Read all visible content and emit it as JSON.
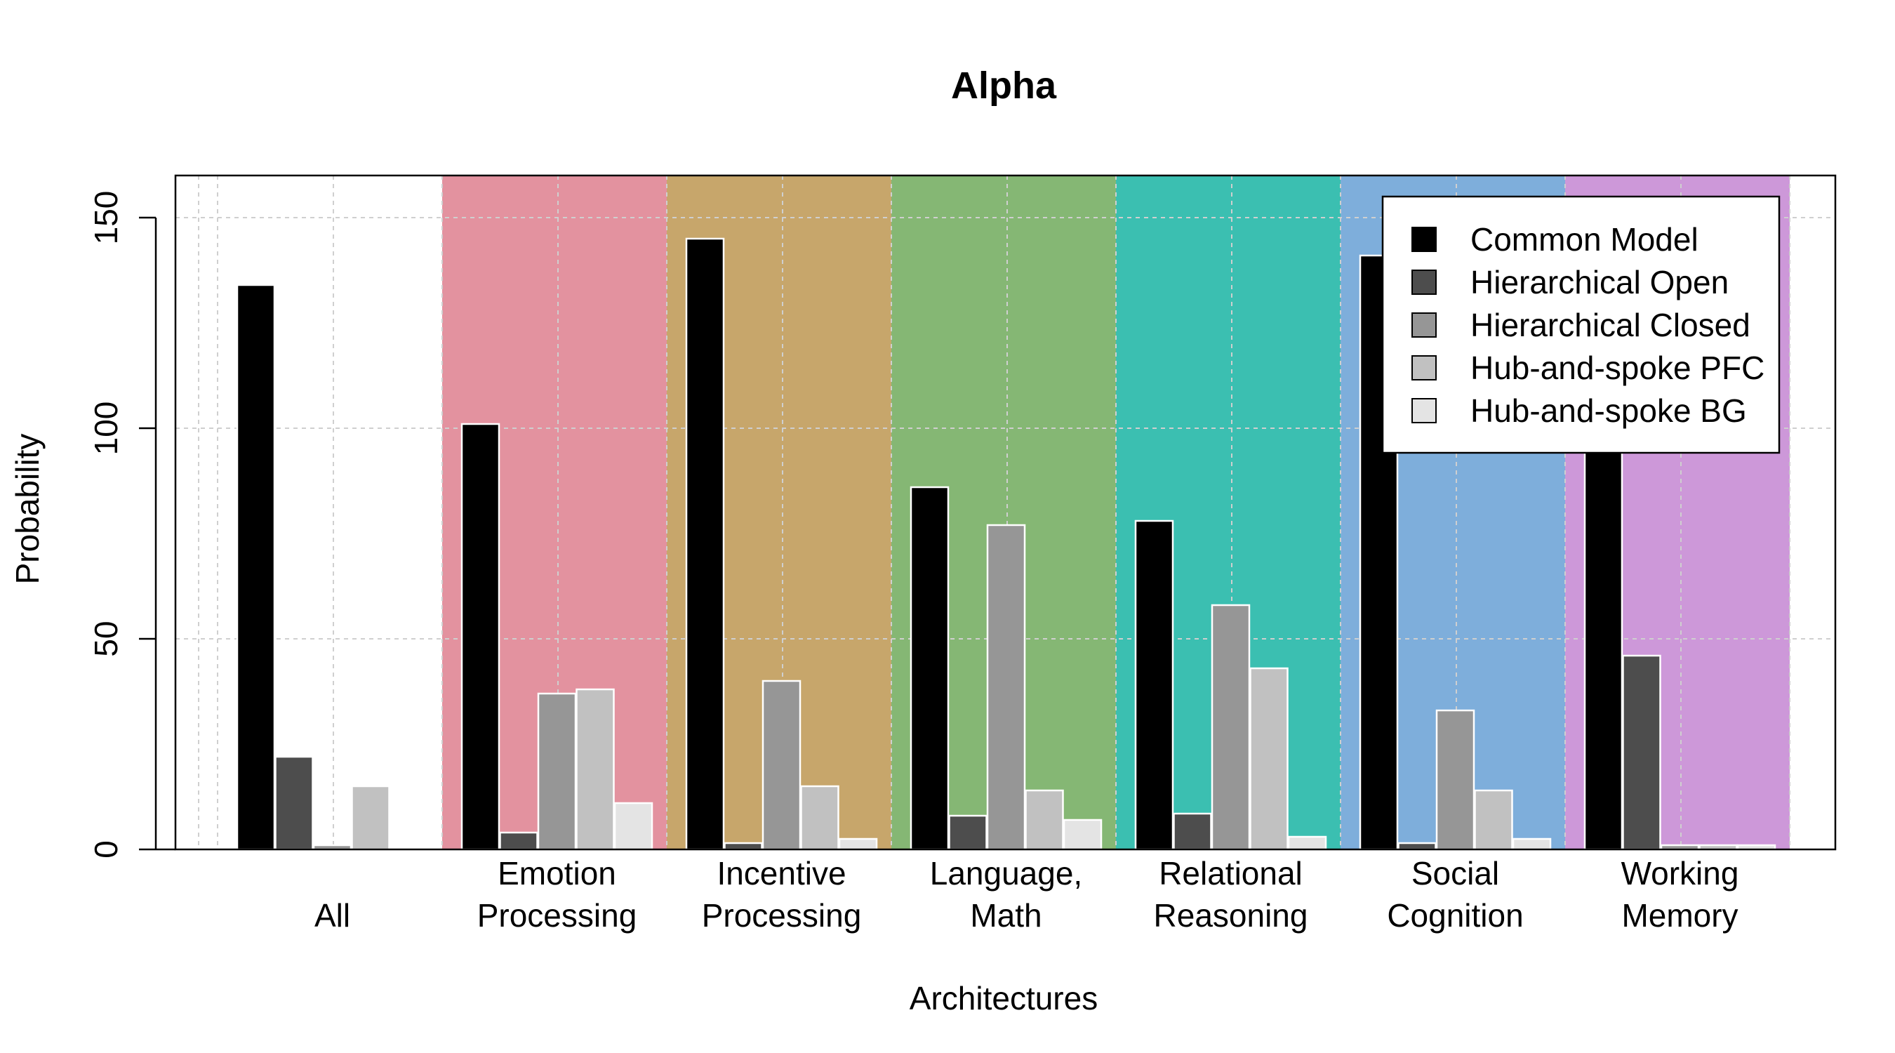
{
  "chart_data": {
    "type": "bar",
    "title": "Alpha",
    "xlabel": "Architectures",
    "ylabel": "Probability",
    "ylim": [
      0,
      160
    ],
    "yticks": [
      0,
      50,
      100,
      150
    ],
    "grid": true,
    "legend_position": "top-right",
    "categories": [
      {
        "lines": [
          "All"
        ],
        "background": "#ffffff"
      },
      {
        "lines": [
          "Emotion",
          "Processing"
        ],
        "background": "#e3929f"
      },
      {
        "lines": [
          "Incentive",
          "Processing"
        ],
        "background": "#c7a66b"
      },
      {
        "lines": [
          "Language,",
          "Math"
        ],
        "background": "#85b774"
      },
      {
        "lines": [
          "Relational",
          "Reasoning"
        ],
        "background": "#3bbfb1"
      },
      {
        "lines": [
          "Social",
          "Cognition"
        ],
        "background": "#7eaedb"
      },
      {
        "lines": [
          "Working",
          "Memory"
        ],
        "background": "#cd98d9"
      }
    ],
    "series": [
      {
        "name": "Common Model",
        "color": "#000000",
        "values": [
          134,
          101,
          145,
          86,
          78,
          141,
          97
        ]
      },
      {
        "name": "Hierarchical Open",
        "color": "#4d4d4d",
        "values": [
          22,
          4,
          1.5,
          8,
          8.5,
          1.5,
          46
        ]
      },
      {
        "name": "Hierarchical Closed",
        "color": "#969696",
        "values": [
          1,
          37,
          40,
          77,
          58,
          33,
          1
        ]
      },
      {
        "name": "Hub-and-spoke PFC",
        "color": "#c1c1c1",
        "values": [
          15,
          38,
          15,
          14,
          43,
          14,
          1
        ]
      },
      {
        "name": "Hub-and-spoke BG",
        "color": "#e4e4e4",
        "values": [
          0,
          11,
          2.5,
          7,
          3,
          2.5,
          1
        ]
      }
    ]
  }
}
